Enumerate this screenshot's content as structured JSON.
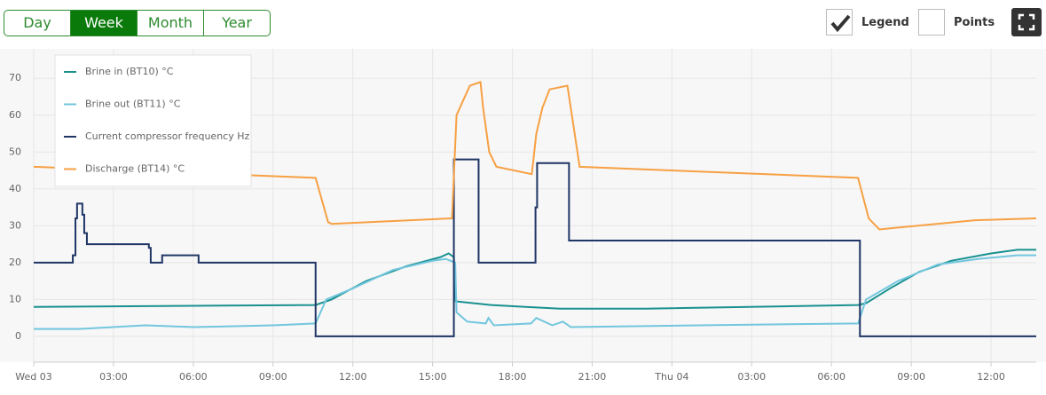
{
  "controls": {
    "range_buttons": [
      "Day",
      "Week",
      "Month",
      "Year"
    ],
    "legend_toggle": "Legend",
    "points_toggle": "Points"
  },
  "chart_data": {
    "type": "line",
    "legend": "top-left",
    "grid": true,
    "xlim": [
      0,
      37.7
    ],
    "ylim": [
      -7,
      78
    ],
    "xticks": [
      {
        "value": 0,
        "label": "Wed 03"
      },
      {
        "value": 3,
        "label": "03:00"
      },
      {
        "value": 6,
        "label": "06:00"
      },
      {
        "value": 9,
        "label": "09:00"
      },
      {
        "value": 12,
        "label": "12:00"
      },
      {
        "value": 15,
        "label": "15:00"
      },
      {
        "value": 18,
        "label": "18:00"
      },
      {
        "value": 21,
        "label": "21:00"
      },
      {
        "value": 24,
        "label": "Thu 04"
      },
      {
        "value": 27,
        "label": "03:00"
      },
      {
        "value": 30,
        "label": "06:00"
      },
      {
        "value": 33,
        "label": "09:00"
      },
      {
        "value": 36,
        "label": "12:00"
      }
    ],
    "yticks": [
      0,
      10,
      20,
      30,
      40,
      50,
      60,
      70
    ],
    "series": [
      {
        "name": "Brine in (BT10) °C",
        "color": "#1a9090",
        "x": [
          0,
          10.6,
          11.2,
          12.5,
          14,
          15.3,
          15.6,
          15.8,
          15.87,
          17.2,
          18.5,
          19.8,
          23,
          31,
          31.3,
          32.2,
          33.3,
          34.5,
          36,
          37,
          37.7
        ],
        "values": [
          8,
          8.5,
          10,
          15,
          19,
          21.5,
          22.5,
          21.5,
          9.5,
          8.5,
          8,
          7.5,
          7.5,
          8.5,
          9,
          13,
          17.5,
          20.5,
          22.5,
          23.5,
          23.5
        ]
      },
      {
        "name": "Brine out (BT11) °C",
        "color": "#72c6de",
        "x": [
          0,
          1.7,
          4.2,
          6,
          9,
          10.6,
          11,
          12,
          13.5,
          15,
          15.5,
          15.85,
          15.9,
          16.3,
          17,
          17.1,
          17.3,
          18.7,
          18.9,
          19.5,
          19.9,
          20.2,
          25,
          31,
          31.3,
          32.5,
          34,
          35.5,
          37,
          37.7
        ],
        "values": [
          2,
          2,
          3,
          2.5,
          3,
          3.5,
          10,
          13,
          18,
          20.5,
          21,
          20,
          6.5,
          4,
          3.5,
          5,
          3,
          3.5,
          5,
          3,
          4,
          2.5,
          3,
          3.5,
          10,
          15,
          19.5,
          21,
          22,
          22
        ]
      },
      {
        "name": "Current compressor frequency Hz",
        "color": "#1f3566",
        "x": [
          0,
          1.47,
          1.47,
          1.57,
          1.57,
          1.63,
          1.63,
          1.83,
          1.83,
          1.9,
          1.9,
          2.0,
          2.0,
          4.33,
          4.33,
          4.4,
          4.4,
          4.83,
          4.83,
          6.2,
          6.2,
          10.6,
          10.6,
          15.8,
          15.8,
          16.73,
          16.73,
          18.87,
          18.87,
          18.93,
          18.93,
          20.13,
          20.13,
          31.07,
          31.07,
          37.7
        ],
        "values": [
          20,
          20,
          22,
          22,
          32,
          32,
          36,
          36,
          33,
          33,
          28,
          28,
          25,
          25,
          24,
          24,
          20,
          20,
          22,
          22,
          20,
          20,
          0,
          0,
          48,
          48,
          20,
          20,
          35,
          35,
          47,
          47,
          26,
          26,
          0,
          0
        ]
      },
      {
        "name": "Discharge (BT14) °C",
        "color": "#f7a043",
        "x": [
          0,
          10.6,
          11.07,
          11.2,
          15.73,
          15.9,
          16.4,
          16.8,
          16.9,
          17.13,
          17.4,
          18.73,
          18.9,
          19.13,
          19.4,
          20.07,
          20.53,
          31,
          31.4,
          31.8,
          32.5,
          35.4,
          37.7
        ],
        "values": [
          46,
          43,
          31,
          30.5,
          32,
          60,
          68,
          69,
          62,
          50,
          46,
          44,
          55,
          62,
          67,
          68,
          46,
          43,
          32,
          29,
          29.5,
          31.5,
          32
        ]
      }
    ]
  }
}
